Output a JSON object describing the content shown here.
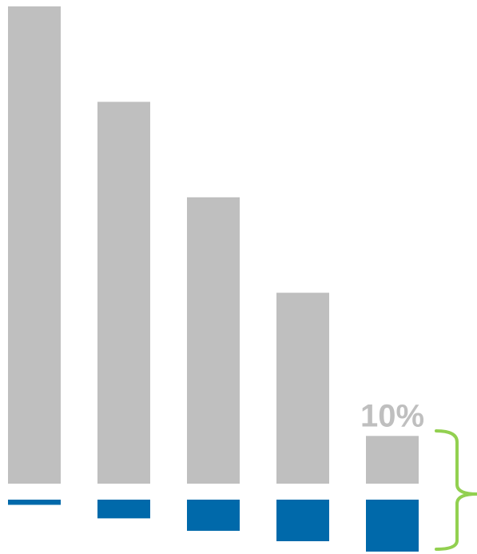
{
  "chart_data": {
    "type": "bar",
    "categories": [
      "",
      "",
      "",
      "",
      ""
    ],
    "series": [
      {
        "values": [
          100,
          80,
          60,
          40,
          10
        ],
        "color": "#bfbfbf"
      },
      {
        "values": [
          1,
          3.6,
          6,
          8,
          10
        ],
        "color": "#0069aa"
      }
    ],
    "data_labels": {
      "top_series_last": "10%"
    },
    "label_color": "#bfbfbf",
    "brace_color": "#92d050",
    "legend": "none",
    "grid": false,
    "axes": "hidden"
  }
}
